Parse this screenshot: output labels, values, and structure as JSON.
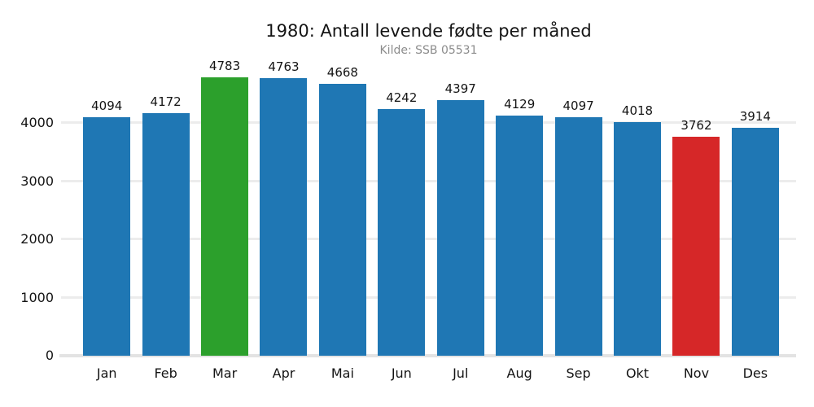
{
  "chart_data": {
    "type": "bar",
    "title": "1980: Antall levende fødte per måned",
    "subtitle": "Kilde: SSB 05531",
    "categories": [
      "Jan",
      "Feb",
      "Mar",
      "Apr",
      "Mai",
      "Jun",
      "Jul",
      "Aug",
      "Sep",
      "Okt",
      "Nov",
      "Des"
    ],
    "values": [
      4094,
      4172,
      4783,
      4763,
      4668,
      4242,
      4397,
      4129,
      4097,
      4018,
      3762,
      3914
    ],
    "bar_colors": [
      "#1f77b4",
      "#1f77b4",
      "#2ca02c",
      "#1f77b4",
      "#1f77b4",
      "#1f77b4",
      "#1f77b4",
      "#1f77b4",
      "#1f77b4",
      "#1f77b4",
      "#d62728",
      "#1f77b4"
    ],
    "highlights": {
      "max_month": "Mar",
      "max_color": "#2ca02c",
      "min_month": "Nov",
      "min_color": "#d62728",
      "default_color": "#1f77b4"
    },
    "value_labels_shown": true,
    "xlabel": "",
    "ylabel": "",
    "yticks": [
      0,
      1000,
      2000,
      3000,
      4000
    ],
    "ylim": [
      0,
      5000
    ],
    "grid": true,
    "legend": "none",
    "style_colors": {
      "background": "#ffffff",
      "grid_line": "#ececec",
      "axis_line": "#e3e3e3",
      "text": "#141414",
      "subtitle_text": "#8c8c8c"
    }
  }
}
